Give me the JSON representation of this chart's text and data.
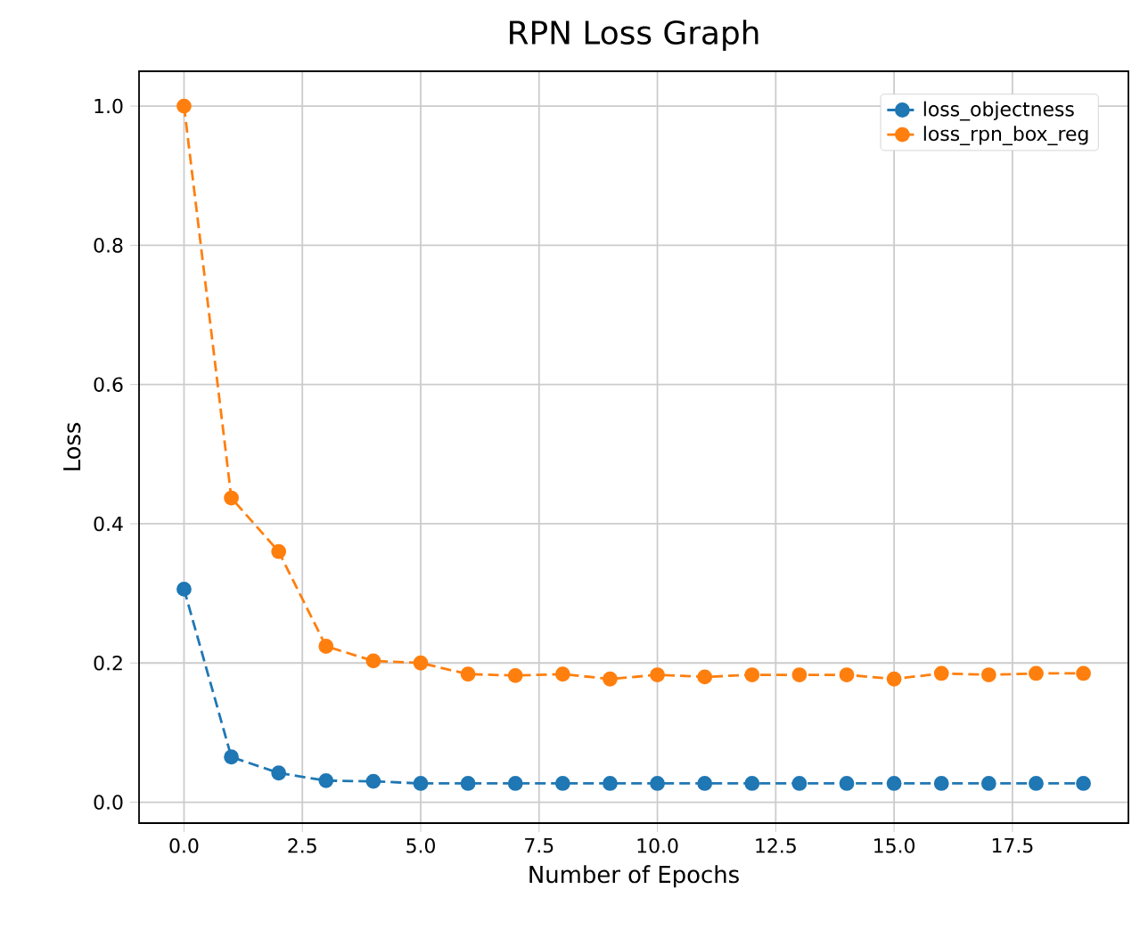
{
  "chart_data": {
    "type": "line",
    "title": "RPN Loss Graph",
    "xlabel": "Number of Epochs",
    "ylabel": "Loss",
    "x": [
      0,
      1,
      2,
      3,
      4,
      5,
      6,
      7,
      8,
      9,
      10,
      11,
      12,
      13,
      14,
      15,
      16,
      17,
      18,
      19
    ],
    "series": [
      {
        "name": "loss_objectness",
        "color": "#1f77b4",
        "values": [
          0.306,
          0.065,
          0.042,
          0.031,
          0.03,
          0.027,
          0.027,
          0.027,
          0.027,
          0.027,
          0.027,
          0.027,
          0.027,
          0.027,
          0.027,
          0.027,
          0.027,
          0.027,
          0.027,
          0.027
        ]
      },
      {
        "name": "loss_rpn_box_reg",
        "color": "#ff7f0e",
        "values": [
          1.0,
          0.437,
          0.36,
          0.224,
          0.203,
          0.2,
          0.184,
          0.182,
          0.184,
          0.177,
          0.183,
          0.18,
          0.183,
          0.183,
          0.183,
          0.177,
          0.185,
          0.183,
          0.185,
          0.185
        ]
      }
    ],
    "xlim": [
      -0.95,
      19.95
    ],
    "ylim": [
      -0.03,
      1.05
    ],
    "xticks": [
      {
        "value": 0,
        "label": "0.0"
      },
      {
        "value": 2.5,
        "label": "2.5"
      },
      {
        "value": 5,
        "label": "5.0"
      },
      {
        "value": 7.5,
        "label": "7.5"
      },
      {
        "value": 10,
        "label": "10.0"
      },
      {
        "value": 12.5,
        "label": "12.5"
      },
      {
        "value": 15,
        "label": "15.0"
      },
      {
        "value": 17.5,
        "label": "17.5"
      }
    ],
    "yticks": [
      {
        "value": 0,
        "label": "0.0"
      },
      {
        "value": 0.2,
        "label": "0.2"
      },
      {
        "value": 0.4,
        "label": "0.4"
      },
      {
        "value": 0.6,
        "label": "0.6"
      },
      {
        "value": 0.8,
        "label": "0.8"
      },
      {
        "value": 1.0,
        "label": "1.0"
      }
    ],
    "grid": true,
    "legend": "top right",
    "marker": "circle",
    "line_style": "dashed"
  }
}
